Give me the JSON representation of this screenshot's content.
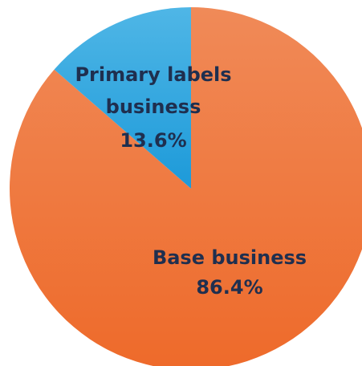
{
  "chart_data": {
    "type": "pie",
    "title": "",
    "slices": [
      {
        "label_lines": [
          "Base business"
        ],
        "percent_text": "86.4%",
        "value": 86.4,
        "color": "#ee6a2a",
        "highlight": "#f08a58"
      },
      {
        "label_lines": [
          "Primary labels",
          "business"
        ],
        "percent_text": "13.6%",
        "value": 13.6,
        "color": "#1d9ad9",
        "highlight": "#4fb6e6"
      }
    ],
    "start_angle_deg": 0,
    "direction": "clockwise",
    "legend": "none"
  }
}
